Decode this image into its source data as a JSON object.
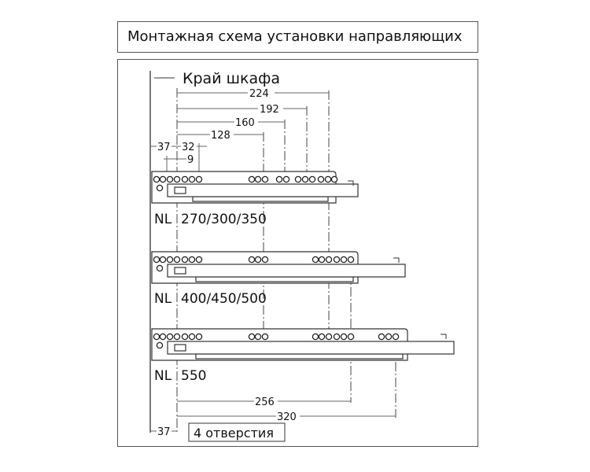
{
  "title": "Монтажная схема установки направляющих",
  "cabinet_edge_label": "Край шкафа",
  "dimensions_top": [
    "224",
    "192",
    "160",
    "128",
    "37",
    "32",
    "9"
  ],
  "rails": [
    {
      "prefix": "NL",
      "sizes": "270/300/350"
    },
    {
      "prefix": "NL",
      "sizes": "400/450/500"
    },
    {
      "prefix": "NL",
      "sizes": "550"
    }
  ],
  "dimensions_bottom": [
    "256",
    "320",
    "37"
  ],
  "holes_note": "4 отверстия"
}
